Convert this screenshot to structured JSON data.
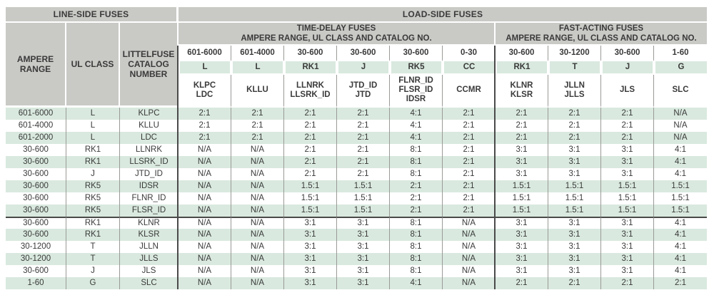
{
  "colors": {
    "header_background": "#c9c9c6",
    "row_highlight_green": "#d9e9df",
    "divider_gray": "#9a9a98",
    "separator_dark": "#4a4a4a",
    "text": "#3a3a3a"
  },
  "table": {
    "line_side_title": "LINE-SIDE FUSES",
    "load_side_title": "LOAD-SIDE FUSES",
    "left_columns": [
      "AMPERE RANGE",
      "UL CLASS",
      "LITTELFUSE CATALOG NUMBER"
    ],
    "groups": [
      {
        "title": "TIME-DELAY FUSES",
        "subtitle": "AMPERE RANGE, UL CLASS AND CATALOG NO.",
        "span": 6
      },
      {
        "title": "FAST-ACTING FUSES",
        "subtitle": "AMPERE RANGE, UL CLASS AND CATALOG NO.",
        "span": 4
      }
    ],
    "fuse_columns": [
      {
        "ampere": "601-6000",
        "ul_class": "L",
        "catalog": [
          "KLPC",
          "LDC"
        ]
      },
      {
        "ampere": "601-4000",
        "ul_class": "L",
        "catalog": [
          "KLLU"
        ]
      },
      {
        "ampere": "30-600",
        "ul_class": "RK1",
        "catalog": [
          "LLNRK",
          "LLSRK_ID"
        ]
      },
      {
        "ampere": "30-600",
        "ul_class": "J",
        "catalog": [
          "JTD_ID",
          "JTD"
        ]
      },
      {
        "ampere": "30-600",
        "ul_class": "RK5",
        "catalog": [
          "FLNR_ID",
          "FLSR_ID",
          "IDSR"
        ]
      },
      {
        "ampere": "0-30",
        "ul_class": "CC",
        "catalog": [
          "CCMR"
        ]
      },
      {
        "ampere": "30-600",
        "ul_class": "RK1",
        "catalog": [
          "KLNR",
          "KLSR"
        ]
      },
      {
        "ampere": "30-1200",
        "ul_class": "T",
        "catalog": [
          "JLLN",
          "JLLS"
        ]
      },
      {
        "ampere": "30-600",
        "ul_class": "J",
        "catalog": [
          "JLS"
        ]
      },
      {
        "ampere": "1-60",
        "ul_class": "G",
        "catalog": [
          "SLC"
        ]
      }
    ],
    "rows": [
      {
        "ampere": "601-6000",
        "ul_class": "L",
        "catalog": "KLPC",
        "values": [
          "2:1",
          "2:1",
          "2:1",
          "2:1",
          "4:1",
          "2:1",
          "2:1",
          "2:1",
          "2:1",
          "N/A"
        ]
      },
      {
        "ampere": "601-4000",
        "ul_class": "L",
        "catalog": "KLLU",
        "values": [
          "2:1",
          "2:1",
          "2:1",
          "2:1",
          "4:1",
          "2:1",
          "2:1",
          "2:1",
          "2:1",
          "N/A"
        ]
      },
      {
        "ampere": "601-2000",
        "ul_class": "L",
        "catalog": "LDC",
        "values": [
          "2:1",
          "2:1",
          "2:1",
          "2:1",
          "4:1",
          "2:1",
          "2:1",
          "2:1",
          "2:1",
          "N/A"
        ]
      },
      {
        "ampere": "30-600",
        "ul_class": "RK1",
        "catalog": "LLNRK",
        "values": [
          "N/A",
          "N/A",
          "2:1",
          "2:1",
          "8:1",
          "2:1",
          "3:1",
          "3:1",
          "3:1",
          "4:1"
        ]
      },
      {
        "ampere": "30-600",
        "ul_class": "RK1",
        "catalog": "LLSRK_ID",
        "values": [
          "N/A",
          "N/A",
          "2:1",
          "2:1",
          "8:1",
          "2:1",
          "3:1",
          "3:1",
          "3:1",
          "4:1"
        ]
      },
      {
        "ampere": "30-600",
        "ul_class": "J",
        "catalog": "JTD_ID",
        "values": [
          "N/A",
          "N/A",
          "2:1",
          "2:1",
          "8:1",
          "2:1",
          "3:1",
          "3:1",
          "3:1",
          "4:1"
        ]
      },
      {
        "ampere": "30-600",
        "ul_class": "RK5",
        "catalog": "IDSR",
        "values": [
          "N/A",
          "N/A",
          "1.5:1",
          "1.5:1",
          "2:1",
          "2:1",
          "1.5:1",
          "1.5:1",
          "1.5:1",
          "1.5:1"
        ]
      },
      {
        "ampere": "30-600",
        "ul_class": "RK5",
        "catalog": "FLNR_ID",
        "values": [
          "N/A",
          "N/A",
          "1.5:1",
          "1.5:1",
          "2:1",
          "2:1",
          "1.5:1",
          "1.5:1",
          "1.5:1",
          "1.5:1"
        ]
      },
      {
        "ampere": "30-600",
        "ul_class": "RK5",
        "catalog": "FLSR_ID",
        "values": [
          "N/A",
          "N/A",
          "1.5:1",
          "1.5:1",
          "2:1",
          "2:1",
          "1.5:1",
          "1.5:1",
          "1.5:1",
          "1.5:1"
        ]
      },
      {
        "ampere": "30-600",
        "ul_class": "RK1",
        "catalog": "KLNR",
        "values": [
          "N/A",
          "N/A",
          "3:1",
          "3:1",
          "8:1",
          "N/A",
          "3:1",
          "3:1",
          "3:1",
          "4:1"
        ]
      },
      {
        "ampere": "30-600",
        "ul_class": "RK1",
        "catalog": "KLSR",
        "values": [
          "N/A",
          "N/A",
          "3:1",
          "3:1",
          "8:1",
          "N/A",
          "3:1",
          "3:1",
          "3:1",
          "4:1"
        ]
      },
      {
        "ampere": "30-1200",
        "ul_class": "T",
        "catalog": "JLLN",
        "values": [
          "N/A",
          "N/A",
          "3:1",
          "3:1",
          "8:1",
          "N/A",
          "3:1",
          "3:1",
          "3:1",
          "4:1"
        ]
      },
      {
        "ampere": "30-1200",
        "ul_class": "T",
        "catalog": "JLLS",
        "values": [
          "N/A",
          "N/A",
          "3:1",
          "3:1",
          "8:1",
          "N/A",
          "3:1",
          "3:1",
          "3:1",
          "4:1"
        ]
      },
      {
        "ampere": "30-600",
        "ul_class": "J",
        "catalog": "JLS",
        "values": [
          "N/A",
          "N/A",
          "3:1",
          "3:1",
          "8:1",
          "N/A",
          "3:1",
          "3:1",
          "3:1",
          "4:1"
        ]
      },
      {
        "ampere": "1-60",
        "ul_class": "G",
        "catalog": "SLC",
        "values": [
          "N/A",
          "N/A",
          "3:1",
          "3:1",
          "4:1",
          "N/A",
          "2:1",
          "2:1",
          "2:1",
          "2:1"
        ]
      }
    ]
  }
}
